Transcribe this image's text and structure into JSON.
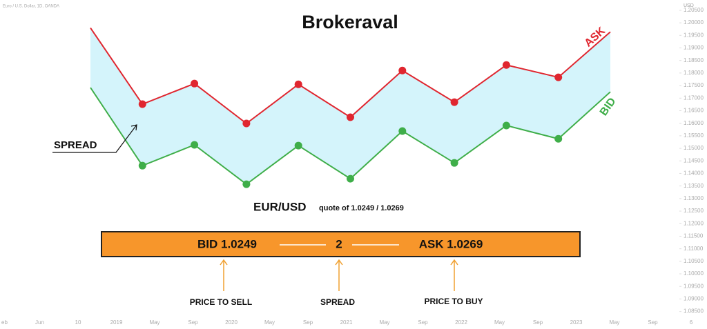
{
  "chart_data": {
    "type": "line",
    "title": "Euro / U.S. Dollar, 1D, OANDA",
    "y_axis_label": "USD",
    "categories": [
      null,
      null,
      null,
      null,
      null,
      null,
      null,
      null,
      null,
      null,
      null
    ],
    "series": [
      {
        "name": "ASK",
        "color": "#e0262f",
        "values": [
          1.198,
          1.1676,
          1.1758,
          1.1599,
          1.1755,
          1.1624,
          1.181,
          1.1684,
          1.1832,
          1.1783,
          1.1964
        ]
      },
      {
        "name": "BID",
        "color": "#3fae49",
        "values": [
          1.1742,
          1.1431,
          1.1514,
          1.1357,
          1.1511,
          1.1379,
          1.1569,
          1.1442,
          1.1591,
          1.1538,
          1.1725
        ]
      }
    ],
    "fill_between": "#d4f4fb",
    "ylim": [
      1.0827,
      1.2058
    ],
    "yticks": [
      {
        "value": 1.205,
        "label": "1.20500"
      },
      {
        "value": 1.2,
        "label": "1.20000"
      },
      {
        "value": 1.195,
        "label": "1.19500"
      },
      {
        "value": 1.19,
        "label": "1.19000"
      },
      {
        "value": 1.185,
        "label": "1.18500"
      },
      {
        "value": 1.18,
        "label": "1.18000"
      },
      {
        "value": 1.175,
        "label": "1.17500"
      },
      {
        "value": 1.17,
        "label": "1.17000"
      },
      {
        "value": 1.165,
        "label": "1.16500"
      },
      {
        "value": 1.16,
        "label": "1.16000"
      },
      {
        "value": 1.155,
        "label": "1.15500"
      },
      {
        "value": 1.15,
        "label": "1.15000"
      },
      {
        "value": 1.145,
        "label": "1.14500"
      },
      {
        "value": 1.14,
        "label": "1.14000"
      },
      {
        "value": 1.135,
        "label": "1.13500"
      },
      {
        "value": 1.13,
        "label": "1.13000"
      },
      {
        "value": 1.125,
        "label": "1.12500"
      },
      {
        "value": 1.12,
        "label": "1.12000"
      },
      {
        "value": 1.115,
        "label": "1.11500"
      },
      {
        "value": 1.11,
        "label": "1.11000"
      },
      {
        "value": 1.105,
        "label": "1.10500"
      },
      {
        "value": 1.1,
        "label": "1.10000"
      },
      {
        "value": 1.095,
        "label": "1.09500"
      },
      {
        "value": 1.09,
        "label": "1.09000"
      },
      {
        "value": 1.085,
        "label": "1.08500"
      }
    ],
    "time_axis_labels": [
      "eb",
      "Jun",
      "10",
      "2019",
      "May",
      "Sep",
      "2020",
      "May",
      "Sep",
      "2021",
      "May",
      "Sep",
      "2022",
      "May",
      "Sep",
      "2023",
      "May",
      "Sep",
      "6"
    ]
  },
  "logo": "Brokeraval",
  "annotations": {
    "spread": "SPREAD",
    "pair": "EUR/USD",
    "quote": "quote of 1.0249 / 1.0269"
  },
  "quote_bar": {
    "bid": "BID 1.0249",
    "spread": "2",
    "ask": "ASK 1.0269",
    "color": "#f7962b"
  },
  "captions": [
    "PRICE TO SELL",
    "SPREAD",
    "PRICE TO BUY"
  ]
}
